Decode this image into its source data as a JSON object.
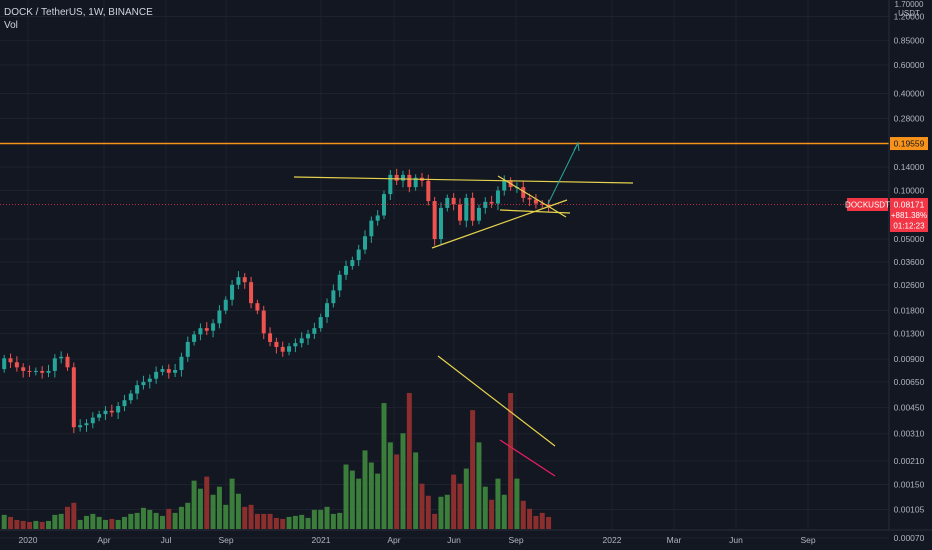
{
  "header": {
    "symbol_line": "DOCK / TetherUS, 1W, BINANCE",
    "indicator": "Vol"
  },
  "price_scale": {
    "unit_top": "1.70000",
    "unit_label": "USDT",
    "ticks": [
      "1.20000",
      "0.85000",
      "0.60000",
      "0.40000",
      "0.28000",
      "0.14000",
      "0.10000",
      "0.05000",
      "0.03600",
      "0.02600",
      "0.01800",
      "0.01300",
      "0.00900",
      "0.00650",
      "0.00450",
      "0.00310",
      "0.00210",
      "0.00150",
      "0.00105",
      "0.00070"
    ]
  },
  "time_axis": {
    "labels": [
      "2020",
      "Apr",
      "Jul",
      "Sep",
      "2021",
      "Apr",
      "Jun",
      "Sep",
      "2022",
      "Mar",
      "Jun",
      "Sep"
    ]
  },
  "horizontal_level": {
    "value": 0.19559,
    "label": "0.19559",
    "color": "#f7931a"
  },
  "current_price": {
    "ticker": "DOCKUSDT",
    "price": "0.08171",
    "change": "+881.38%",
    "countdown": "01:12:23",
    "color": "#f23645"
  },
  "colors": {
    "up": "#26a69a",
    "down": "#ef5350",
    "vol_up": "#3b7d3b",
    "vol_down": "#8a2e2e",
    "trendline": "#e6d34d",
    "arrow": "#26a69a",
    "magenta_line": "#e91e63"
  },
  "chart_data": {
    "type": "candlestick",
    "scale": "log",
    "y_range": [
      0.00055,
      1.7
    ],
    "close": [
      0.0091,
      0.0086,
      0.008,
      0.0076,
      0.0075,
      0.0076,
      0.0074,
      0.0076,
      0.0091,
      0.0093,
      0.008,
      0.0034,
      0.0035,
      0.0036,
      0.0039,
      0.0041,
      0.0043,
      0.0042,
      0.0046,
      0.005,
      0.0055,
      0.0062,
      0.0065,
      0.0068,
      0.0075,
      0.0078,
      0.0074,
      0.0077,
      0.0093,
      0.0115,
      0.0128,
      0.014,
      0.0135,
      0.015,
      0.018,
      0.021,
      0.026,
      0.029,
      0.027,
      0.02,
      0.018,
      0.013,
      0.0115,
      0.0107,
      0.01,
      0.0108,
      0.0113,
      0.0121,
      0.0129,
      0.014,
      0.0164,
      0.02,
      0.024,
      0.03,
      0.034,
      0.037,
      0.043,
      0.052,
      0.065,
      0.07,
      0.095,
      0.125,
      0.115,
      0.125,
      0.105,
      0.12,
      0.115,
      0.086,
      0.05,
      0.078,
      0.09,
      0.082,
      0.065,
      0.09,
      0.065,
      0.078,
      0.085,
      0.083,
      0.1,
      0.115,
      0.105,
      0.105,
      0.09,
      0.088,
      0.083,
      0.082,
      0.08
    ],
    "volume": [
      14,
      12,
      9,
      8,
      7,
      8,
      7,
      8,
      14,
      15,
      22,
      26,
      9,
      13,
      15,
      12,
      9,
      10,
      9,
      12,
      15,
      16,
      21,
      19,
      16,
      13,
      20,
      16,
      22,
      26,
      48,
      40,
      52,
      34,
      42,
      24,
      50,
      35,
      22,
      24,
      15,
      15,
      15,
      11,
      10,
      12,
      13,
      14,
      11,
      19,
      19,
      22,
      15,
      16,
      64,
      58,
      50,
      78,
      66,
      55,
      125,
      86,
      74,
      95,
      135,
      76,
      45,
      33,
      15,
      32,
      34,
      54,
      45,
      60,
      118,
      86,
      42,
      29,
      50,
      34,
      135,
      50,
      28,
      20,
      13,
      16,
      12
    ]
  }
}
